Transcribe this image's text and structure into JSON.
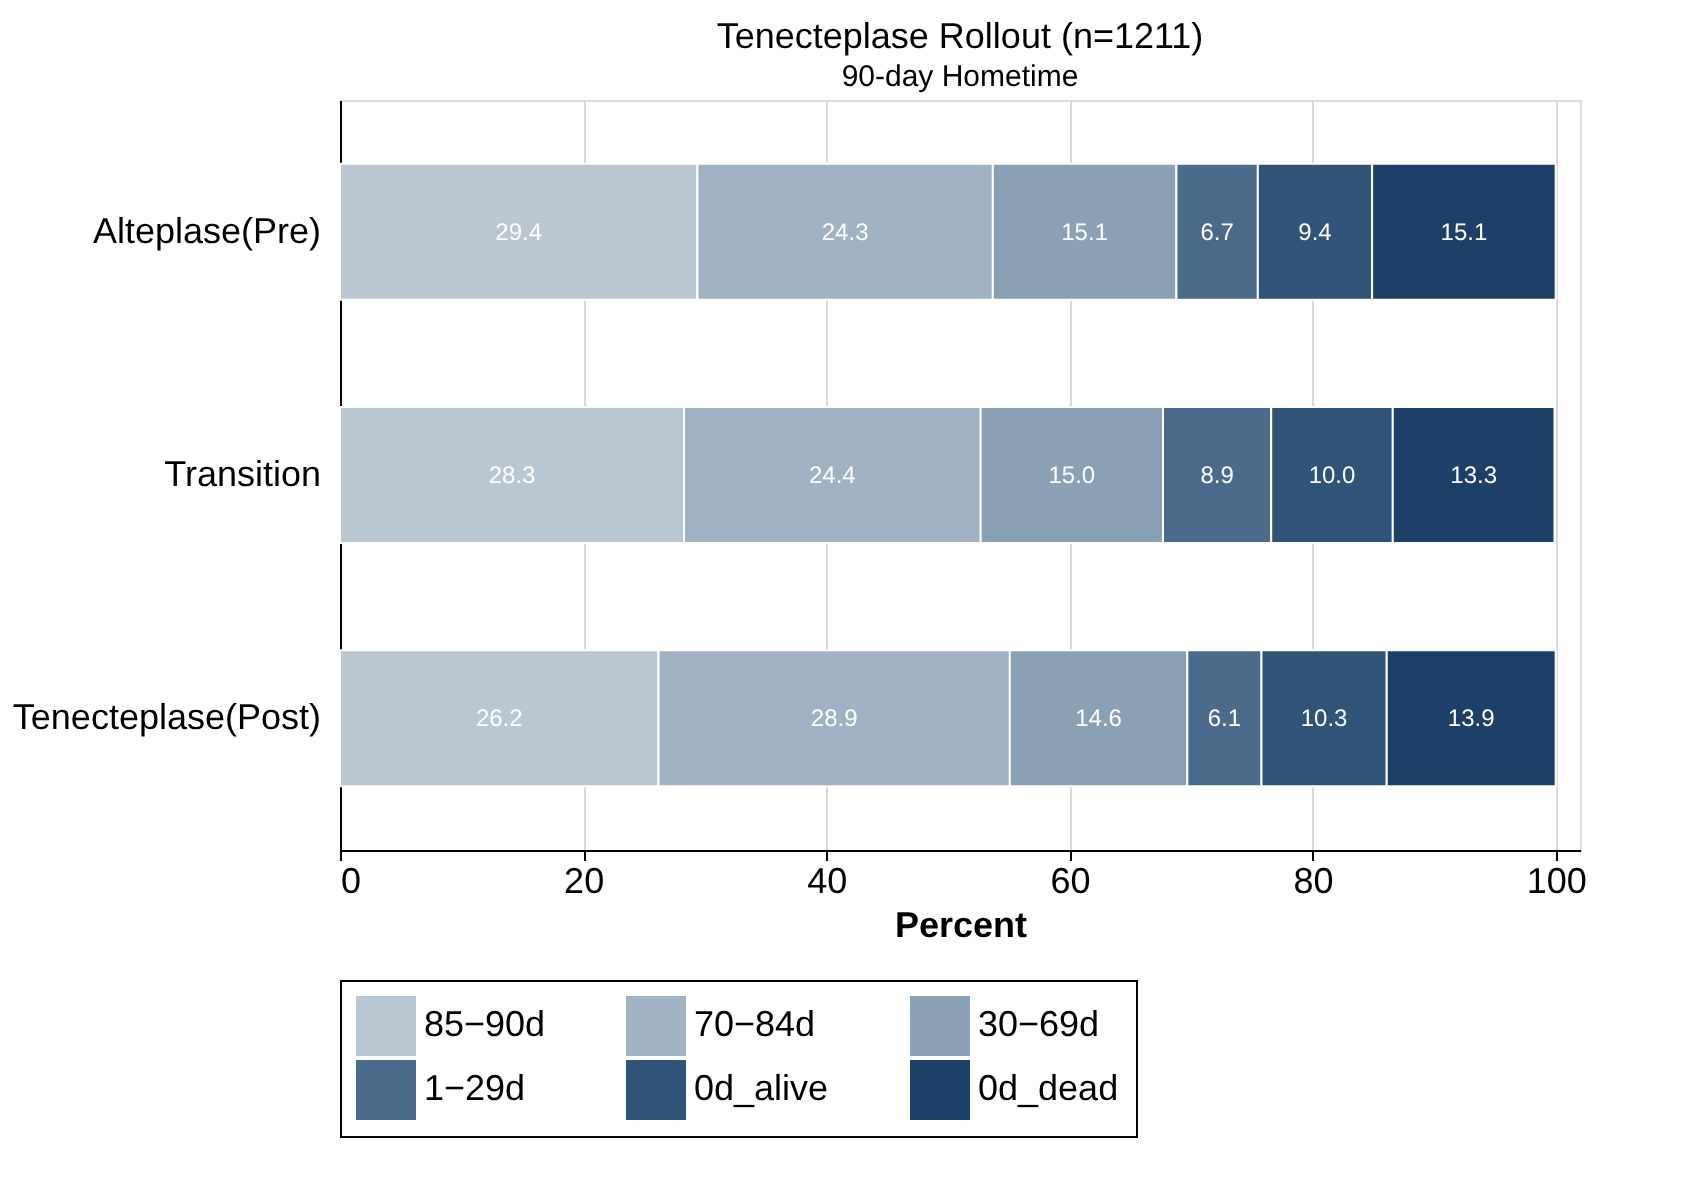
{
  "chart_data": {
    "type": "bar",
    "orientation": "horizontal",
    "stacked": true,
    "title": "Tenecteplase Rollout (n=1211)",
    "subtitle": "90-day Hometime",
    "xlabel": "Percent",
    "categories": [
      "Alteplase(Pre)",
      "Transition",
      "Tenecteplase(Post)"
    ],
    "series": [
      {
        "name": "85−90d",
        "color": "#b9c7d3",
        "values": [
          29.4,
          28.3,
          26.2
        ],
        "value_labels": [
          "29.4",
          "28.3",
          "26.2"
        ]
      },
      {
        "name": "70−84d",
        "color": "#a0b2c3",
        "values": [
          24.3,
          24.4,
          28.9
        ],
        "value_labels": [
          "24.3",
          "24.4",
          "28.9"
        ]
      },
      {
        "name": "30−69d",
        "color": "#8aa1b5",
        "values": [
          15.1,
          15.0,
          14.6
        ],
        "value_labels": [
          "15.1",
          "15.0",
          "14.6"
        ]
      },
      {
        "name": "1−29d",
        "color": "#4a6b8c",
        "values": [
          6.7,
          8.9,
          6.1
        ],
        "value_labels": [
          "6.7",
          "8.9",
          "6.1"
        ]
      },
      {
        "name": "0d_alive",
        "color": "#2f5478",
        "values": [
          9.4,
          10.0,
          10.3
        ],
        "value_labels": [
          "9.4",
          "10.0",
          "10.3"
        ]
      },
      {
        "name": "0d_dead",
        "color": "#1c4068",
        "values": [
          15.1,
          13.3,
          13.9
        ],
        "value_labels": [
          "15.1",
          "13.3",
          "13.9"
        ]
      }
    ],
    "xlim": [
      0,
      102
    ],
    "xticks": [
      0,
      20,
      40,
      60,
      80,
      100
    ],
    "grid": "x",
    "legend": "bottom"
  }
}
